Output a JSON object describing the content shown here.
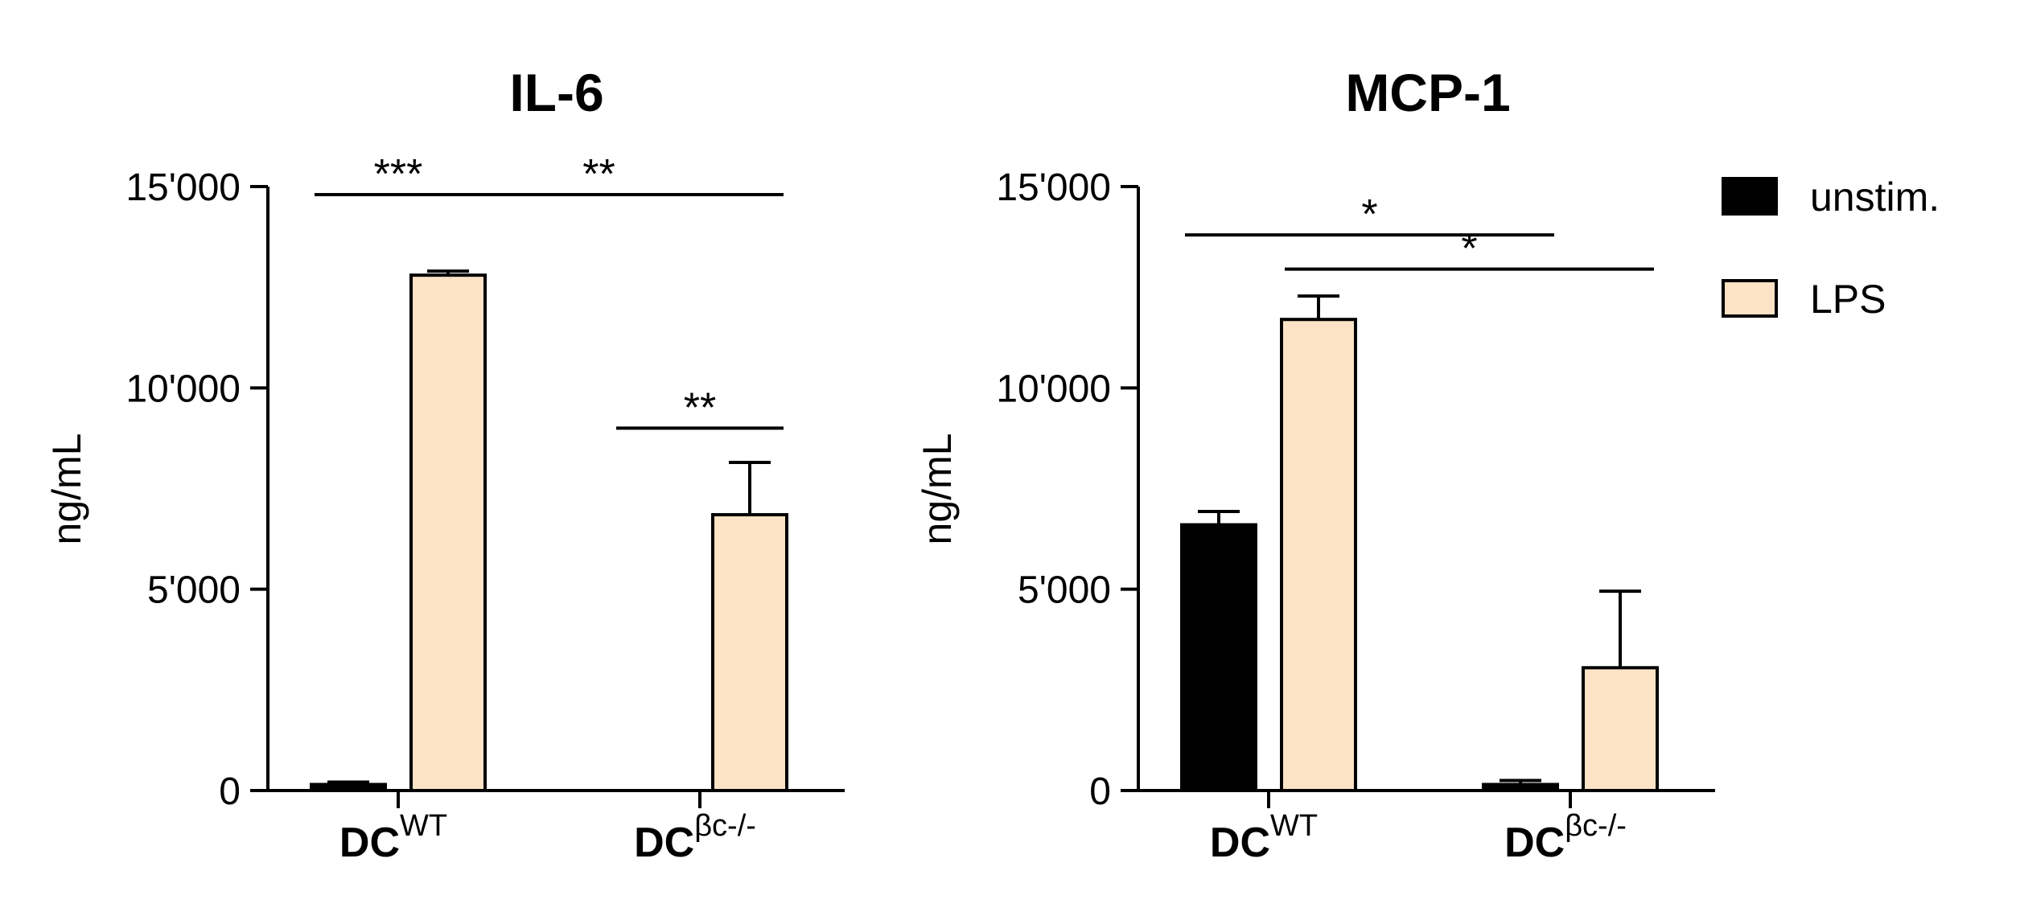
{
  "legend": {
    "items": [
      {
        "label": "unstim.",
        "color": "#000000"
      },
      {
        "label": "LPS",
        "color": "#fde3c6"
      }
    ]
  },
  "chart_data": [
    {
      "type": "bar",
      "title": "IL-6",
      "ylabel": "ng/mL",
      "ylim": [
        0,
        15000
      ],
      "yticks": [
        0,
        5000,
        10000,
        15000
      ],
      "ytick_labels": [
        "0",
        "5'000",
        "10'000",
        "15'000"
      ],
      "categories": [
        {
          "main": "DC",
          "sup": "WT"
        },
        {
          "main": "DC",
          "sup": "βc-/-"
        }
      ],
      "series": [
        {
          "name": "unstim.",
          "values": [
            150,
            0
          ],
          "errors": [
            60,
            0
          ]
        },
        {
          "name": "LPS",
          "values": [
            12800,
            6850
          ],
          "errors": [
            100,
            1300
          ]
        }
      ],
      "significance": [
        {
          "label": "***",
          "from": [
            0,
            0
          ],
          "to": [
            0,
            1
          ],
          "level": 14800
        },
        {
          "label": "**",
          "from": [
            0,
            1
          ],
          "to": [
            1,
            1
          ],
          "level": 14800
        },
        {
          "label": "**",
          "from": [
            1,
            0
          ],
          "to": [
            1,
            1
          ],
          "level": 9000
        }
      ]
    },
    {
      "type": "bar",
      "title": "MCP-1",
      "ylabel": "ng/mL",
      "ylim": [
        0,
        15000
      ],
      "yticks": [
        0,
        5000,
        10000,
        15000
      ],
      "ytick_labels": [
        "0",
        "5'000",
        "10'000",
        "15'000"
      ],
      "categories": [
        {
          "main": "DC",
          "sup": "WT"
        },
        {
          "main": "DC",
          "sup": "βc-/-"
        }
      ],
      "series": [
        {
          "name": "unstim.",
          "values": [
            6600,
            150
          ],
          "errors": [
            330,
            100
          ]
        },
        {
          "name": "LPS",
          "values": [
            11700,
            3050
          ],
          "errors": [
            580,
            1900
          ]
        }
      ],
      "significance": [
        {
          "label": "*",
          "from": [
            0,
            0
          ],
          "to": [
            1,
            0
          ],
          "level": 13800
        },
        {
          "label": "*",
          "from": [
            0,
            1
          ],
          "to": [
            1,
            1
          ],
          "level": 12950
        }
      ]
    }
  ]
}
